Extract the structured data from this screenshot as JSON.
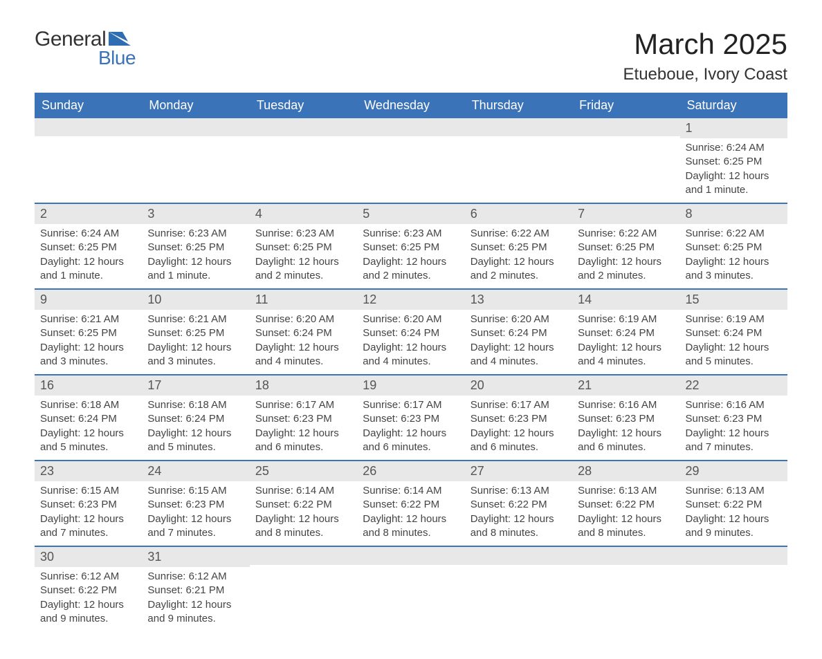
{
  "logo": {
    "word1": "General",
    "word2": "Blue",
    "flag_color": "#2f6db3"
  },
  "title": "March 2025",
  "location": "Etueboue, Ivory Coast",
  "colors": {
    "header_bg": "#3b73b9",
    "header_text": "#ffffff",
    "daynum_bg": "#e8e8e8",
    "row_border": "#3b73b9",
    "body_bg": "#ffffff"
  },
  "weekdays": [
    "Sunday",
    "Monday",
    "Tuesday",
    "Wednesday",
    "Thursday",
    "Friday",
    "Saturday"
  ],
  "weeks": [
    [
      {
        "day": "",
        "sunrise": "",
        "sunset": "",
        "daylight": ""
      },
      {
        "day": "",
        "sunrise": "",
        "sunset": "",
        "daylight": ""
      },
      {
        "day": "",
        "sunrise": "",
        "sunset": "",
        "daylight": ""
      },
      {
        "day": "",
        "sunrise": "",
        "sunset": "",
        "daylight": ""
      },
      {
        "day": "",
        "sunrise": "",
        "sunset": "",
        "daylight": ""
      },
      {
        "day": "",
        "sunrise": "",
        "sunset": "",
        "daylight": ""
      },
      {
        "day": "1",
        "sunrise": "Sunrise: 6:24 AM",
        "sunset": "Sunset: 6:25 PM",
        "daylight": "Daylight: 12 hours and 1 minute."
      }
    ],
    [
      {
        "day": "2",
        "sunrise": "Sunrise: 6:24 AM",
        "sunset": "Sunset: 6:25 PM",
        "daylight": "Daylight: 12 hours and 1 minute."
      },
      {
        "day": "3",
        "sunrise": "Sunrise: 6:23 AM",
        "sunset": "Sunset: 6:25 PM",
        "daylight": "Daylight: 12 hours and 1 minute."
      },
      {
        "day": "4",
        "sunrise": "Sunrise: 6:23 AM",
        "sunset": "Sunset: 6:25 PM",
        "daylight": "Daylight: 12 hours and 2 minutes."
      },
      {
        "day": "5",
        "sunrise": "Sunrise: 6:23 AM",
        "sunset": "Sunset: 6:25 PM",
        "daylight": "Daylight: 12 hours and 2 minutes."
      },
      {
        "day": "6",
        "sunrise": "Sunrise: 6:22 AM",
        "sunset": "Sunset: 6:25 PM",
        "daylight": "Daylight: 12 hours and 2 minutes."
      },
      {
        "day": "7",
        "sunrise": "Sunrise: 6:22 AM",
        "sunset": "Sunset: 6:25 PM",
        "daylight": "Daylight: 12 hours and 2 minutes."
      },
      {
        "day": "8",
        "sunrise": "Sunrise: 6:22 AM",
        "sunset": "Sunset: 6:25 PM",
        "daylight": "Daylight: 12 hours and 3 minutes."
      }
    ],
    [
      {
        "day": "9",
        "sunrise": "Sunrise: 6:21 AM",
        "sunset": "Sunset: 6:25 PM",
        "daylight": "Daylight: 12 hours and 3 minutes."
      },
      {
        "day": "10",
        "sunrise": "Sunrise: 6:21 AM",
        "sunset": "Sunset: 6:25 PM",
        "daylight": "Daylight: 12 hours and 3 minutes."
      },
      {
        "day": "11",
        "sunrise": "Sunrise: 6:20 AM",
        "sunset": "Sunset: 6:24 PM",
        "daylight": "Daylight: 12 hours and 4 minutes."
      },
      {
        "day": "12",
        "sunrise": "Sunrise: 6:20 AM",
        "sunset": "Sunset: 6:24 PM",
        "daylight": "Daylight: 12 hours and 4 minutes."
      },
      {
        "day": "13",
        "sunrise": "Sunrise: 6:20 AM",
        "sunset": "Sunset: 6:24 PM",
        "daylight": "Daylight: 12 hours and 4 minutes."
      },
      {
        "day": "14",
        "sunrise": "Sunrise: 6:19 AM",
        "sunset": "Sunset: 6:24 PM",
        "daylight": "Daylight: 12 hours and 4 minutes."
      },
      {
        "day": "15",
        "sunrise": "Sunrise: 6:19 AM",
        "sunset": "Sunset: 6:24 PM",
        "daylight": "Daylight: 12 hours and 5 minutes."
      }
    ],
    [
      {
        "day": "16",
        "sunrise": "Sunrise: 6:18 AM",
        "sunset": "Sunset: 6:24 PM",
        "daylight": "Daylight: 12 hours and 5 minutes."
      },
      {
        "day": "17",
        "sunrise": "Sunrise: 6:18 AM",
        "sunset": "Sunset: 6:24 PM",
        "daylight": "Daylight: 12 hours and 5 minutes."
      },
      {
        "day": "18",
        "sunrise": "Sunrise: 6:17 AM",
        "sunset": "Sunset: 6:23 PM",
        "daylight": "Daylight: 12 hours and 6 minutes."
      },
      {
        "day": "19",
        "sunrise": "Sunrise: 6:17 AM",
        "sunset": "Sunset: 6:23 PM",
        "daylight": "Daylight: 12 hours and 6 minutes."
      },
      {
        "day": "20",
        "sunrise": "Sunrise: 6:17 AM",
        "sunset": "Sunset: 6:23 PM",
        "daylight": "Daylight: 12 hours and 6 minutes."
      },
      {
        "day": "21",
        "sunrise": "Sunrise: 6:16 AM",
        "sunset": "Sunset: 6:23 PM",
        "daylight": "Daylight: 12 hours and 6 minutes."
      },
      {
        "day": "22",
        "sunrise": "Sunrise: 6:16 AM",
        "sunset": "Sunset: 6:23 PM",
        "daylight": "Daylight: 12 hours and 7 minutes."
      }
    ],
    [
      {
        "day": "23",
        "sunrise": "Sunrise: 6:15 AM",
        "sunset": "Sunset: 6:23 PM",
        "daylight": "Daylight: 12 hours and 7 minutes."
      },
      {
        "day": "24",
        "sunrise": "Sunrise: 6:15 AM",
        "sunset": "Sunset: 6:23 PM",
        "daylight": "Daylight: 12 hours and 7 minutes."
      },
      {
        "day": "25",
        "sunrise": "Sunrise: 6:14 AM",
        "sunset": "Sunset: 6:22 PM",
        "daylight": "Daylight: 12 hours and 8 minutes."
      },
      {
        "day": "26",
        "sunrise": "Sunrise: 6:14 AM",
        "sunset": "Sunset: 6:22 PM",
        "daylight": "Daylight: 12 hours and 8 minutes."
      },
      {
        "day": "27",
        "sunrise": "Sunrise: 6:13 AM",
        "sunset": "Sunset: 6:22 PM",
        "daylight": "Daylight: 12 hours and 8 minutes."
      },
      {
        "day": "28",
        "sunrise": "Sunrise: 6:13 AM",
        "sunset": "Sunset: 6:22 PM",
        "daylight": "Daylight: 12 hours and 8 minutes."
      },
      {
        "day": "29",
        "sunrise": "Sunrise: 6:13 AM",
        "sunset": "Sunset: 6:22 PM",
        "daylight": "Daylight: 12 hours and 9 minutes."
      }
    ],
    [
      {
        "day": "30",
        "sunrise": "Sunrise: 6:12 AM",
        "sunset": "Sunset: 6:22 PM",
        "daylight": "Daylight: 12 hours and 9 minutes."
      },
      {
        "day": "31",
        "sunrise": "Sunrise: 6:12 AM",
        "sunset": "Sunset: 6:21 PM",
        "daylight": "Daylight: 12 hours and 9 minutes."
      },
      {
        "day": "",
        "sunrise": "",
        "sunset": "",
        "daylight": ""
      },
      {
        "day": "",
        "sunrise": "",
        "sunset": "",
        "daylight": ""
      },
      {
        "day": "",
        "sunrise": "",
        "sunset": "",
        "daylight": ""
      },
      {
        "day": "",
        "sunrise": "",
        "sunset": "",
        "daylight": ""
      },
      {
        "day": "",
        "sunrise": "",
        "sunset": "",
        "daylight": ""
      }
    ]
  ]
}
